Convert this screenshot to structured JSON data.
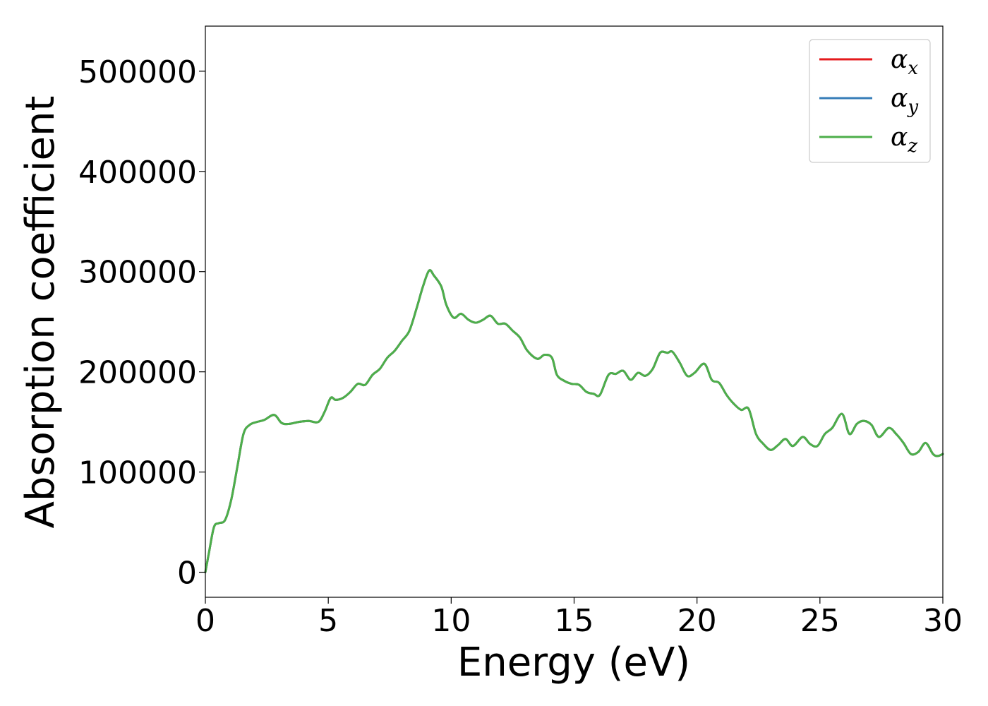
{
  "chart_data": {
    "type": "line",
    "title": "",
    "xlabel": "Energy (eV)",
    "ylabel": "Absorption coefficient",
    "xlim": [
      0,
      30
    ],
    "ylim": [
      -25000,
      545000
    ],
    "x_ticks": [
      0,
      5,
      10,
      15,
      20,
      25,
      30
    ],
    "x_tick_labels": [
      "0",
      "5",
      "10",
      "15",
      "20",
      "25",
      "30"
    ],
    "y_ticks": [
      0,
      100000,
      200000,
      300000,
      400000,
      500000
    ],
    "y_tick_labels": [
      "0",
      "100000",
      "200000",
      "300000",
      "400000",
      "500000"
    ],
    "grid": false,
    "legend_position": "top-right",
    "series": [
      {
        "name": "α_x",
        "name_base": "α",
        "name_sub": "x",
        "color": "#e41a1c",
        "x": [
          0,
          0.15,
          0.35,
          0.55,
          0.8,
          1.05,
          1.3,
          1.55,
          1.8,
          2.1,
          2.4,
          2.8,
          3.1,
          3.4,
          3.8,
          4.2,
          4.6,
          4.85,
          5.1,
          5.3,
          5.6,
          5.9,
          6.2,
          6.5,
          6.8,
          7.1,
          7.4,
          7.7,
          8.0,
          8.3,
          8.6,
          8.85,
          9.1,
          9.3,
          9.6,
          9.8,
          10.1,
          10.4,
          10.7,
          11.0,
          11.3,
          11.6,
          11.9,
          12.2,
          12.5,
          12.8,
          13.1,
          13.5,
          13.8,
          14.1,
          14.3,
          14.6,
          14.9,
          15.2,
          15.5,
          15.8,
          16.05,
          16.4,
          16.7,
          17.0,
          17.3,
          17.6,
          17.9,
          18.2,
          18.5,
          18.8,
          19.0,
          19.3,
          19.6,
          19.9,
          20.3,
          20.6,
          20.9,
          21.2,
          21.5,
          21.8,
          22.1,
          22.4,
          22.7,
          23.0,
          23.3,
          23.6,
          23.9,
          24.3,
          24.6,
          24.9,
          25.2,
          25.5,
          25.9,
          26.2,
          26.5,
          26.8,
          27.1,
          27.4,
          27.8,
          28.1,
          28.4,
          28.7,
          29.0,
          29.3,
          29.6,
          29.8,
          30.0
        ],
        "y": [
          0,
          20000,
          45000,
          49000,
          52000,
          72000,
          105000,
          138000,
          147000,
          150000,
          152000,
          157000,
          149000,
          148000,
          150000,
          151000,
          150000,
          160000,
          174000,
          172000,
          174000,
          180000,
          188000,
          187000,
          197000,
          203000,
          214000,
          221000,
          231000,
          241000,
          264000,
          285000,
          301000,
          296000,
          285000,
          267000,
          254000,
          258000,
          252000,
          249000,
          252000,
          256000,
          248000,
          248000,
          241000,
          234000,
          221000,
          213000,
          217000,
          214000,
          197000,
          191000,
          188000,
          187000,
          180000,
          178000,
          177000,
          197000,
          198000,
          201000,
          192000,
          199000,
          196000,
          203000,
          219000,
          219000,
          220000,
          209000,
          196000,
          199000,
          208000,
          192000,
          189000,
          177000,
          168000,
          162000,
          163000,
          138000,
          128000,
          122000,
          127000,
          133000,
          126000,
          135000,
          128000,
          126000,
          138000,
          144000,
          158000,
          138000,
          148000,
          151000,
          147000,
          135000,
          144000,
          138000,
          129000,
          118000,
          120000,
          129000,
          118000,
          116000,
          118000
        ]
      },
      {
        "name": "α_y",
        "name_base": "α",
        "name_sub": "y",
        "color": "#377eb8",
        "x": [
          0,
          0.15,
          0.35,
          0.55,
          0.8,
          1.05,
          1.3,
          1.55,
          1.8,
          2.1,
          2.4,
          2.8,
          3.1,
          3.4,
          3.8,
          4.2,
          4.6,
          4.85,
          5.1,
          5.3,
          5.6,
          5.9,
          6.2,
          6.5,
          6.8,
          7.1,
          7.4,
          7.7,
          8.0,
          8.3,
          8.6,
          8.85,
          9.1,
          9.3,
          9.6,
          9.8,
          10.1,
          10.4,
          10.7,
          11.0,
          11.3,
          11.6,
          11.9,
          12.2,
          12.5,
          12.8,
          13.1,
          13.5,
          13.8,
          14.1,
          14.3,
          14.6,
          14.9,
          15.2,
          15.5,
          15.8,
          16.05,
          16.4,
          16.7,
          17.0,
          17.3,
          17.6,
          17.9,
          18.2,
          18.5,
          18.8,
          19.0,
          19.3,
          19.6,
          19.9,
          20.3,
          20.6,
          20.9,
          21.2,
          21.5,
          21.8,
          22.1,
          22.4,
          22.7,
          23.0,
          23.3,
          23.6,
          23.9,
          24.3,
          24.6,
          24.9,
          25.2,
          25.5,
          25.9,
          26.2,
          26.5,
          26.8,
          27.1,
          27.4,
          27.8,
          28.1,
          28.4,
          28.7,
          29.0,
          29.3,
          29.6,
          29.8,
          30.0
        ],
        "y": [
          0,
          20000,
          45000,
          49000,
          52000,
          72000,
          105000,
          138000,
          147000,
          150000,
          152000,
          157000,
          149000,
          148000,
          150000,
          151000,
          150000,
          160000,
          174000,
          172000,
          174000,
          180000,
          188000,
          187000,
          197000,
          203000,
          214000,
          221000,
          231000,
          241000,
          264000,
          285000,
          301000,
          296000,
          285000,
          267000,
          254000,
          258000,
          252000,
          249000,
          252000,
          256000,
          248000,
          248000,
          241000,
          234000,
          221000,
          213000,
          217000,
          214000,
          197000,
          191000,
          188000,
          187000,
          180000,
          178000,
          177000,
          197000,
          198000,
          201000,
          192000,
          199000,
          196000,
          203000,
          219000,
          219000,
          220000,
          209000,
          196000,
          199000,
          208000,
          192000,
          189000,
          177000,
          168000,
          162000,
          163000,
          138000,
          128000,
          122000,
          127000,
          133000,
          126000,
          135000,
          128000,
          126000,
          138000,
          144000,
          158000,
          138000,
          148000,
          151000,
          147000,
          135000,
          144000,
          138000,
          129000,
          118000,
          120000,
          129000,
          118000,
          116000,
          118000
        ]
      },
      {
        "name": "α_z",
        "name_base": "α",
        "name_sub": "z",
        "color": "#4daf4a",
        "x": [
          0,
          0.15,
          0.35,
          0.55,
          0.8,
          1.05,
          1.3,
          1.55,
          1.8,
          2.1,
          2.4,
          2.8,
          3.1,
          3.4,
          3.8,
          4.2,
          4.6,
          4.85,
          5.1,
          5.3,
          5.6,
          5.9,
          6.2,
          6.5,
          6.8,
          7.1,
          7.4,
          7.7,
          8.0,
          8.3,
          8.6,
          8.85,
          9.1,
          9.3,
          9.6,
          9.8,
          10.1,
          10.4,
          10.7,
          11.0,
          11.3,
          11.6,
          11.9,
          12.2,
          12.5,
          12.8,
          13.1,
          13.5,
          13.8,
          14.1,
          14.3,
          14.6,
          14.9,
          15.2,
          15.5,
          15.8,
          16.05,
          16.4,
          16.7,
          17.0,
          17.3,
          17.6,
          17.9,
          18.2,
          18.5,
          18.8,
          19.0,
          19.3,
          19.6,
          19.9,
          20.3,
          20.6,
          20.9,
          21.2,
          21.5,
          21.8,
          22.1,
          22.4,
          22.7,
          23.0,
          23.3,
          23.6,
          23.9,
          24.3,
          24.6,
          24.9,
          25.2,
          25.5,
          25.9,
          26.2,
          26.5,
          26.8,
          27.1,
          27.4,
          27.8,
          28.1,
          28.4,
          28.7,
          29.0,
          29.3,
          29.6,
          29.8,
          30.0
        ],
        "y": [
          0,
          20000,
          45000,
          49000,
          52000,
          72000,
          105000,
          138000,
          147000,
          150000,
          152000,
          157000,
          149000,
          148000,
          150000,
          151000,
          150000,
          160000,
          174000,
          172000,
          174000,
          180000,
          188000,
          187000,
          197000,
          203000,
          214000,
          221000,
          231000,
          241000,
          264000,
          285000,
          301000,
          296000,
          285000,
          267000,
          254000,
          258000,
          252000,
          249000,
          252000,
          256000,
          248000,
          248000,
          241000,
          234000,
          221000,
          213000,
          217000,
          214000,
          197000,
          191000,
          188000,
          187000,
          180000,
          178000,
          177000,
          197000,
          198000,
          201000,
          192000,
          199000,
          196000,
          203000,
          219000,
          219000,
          220000,
          209000,
          196000,
          199000,
          208000,
          192000,
          189000,
          177000,
          168000,
          162000,
          163000,
          138000,
          128000,
          122000,
          127000,
          133000,
          126000,
          135000,
          128000,
          126000,
          138000,
          144000,
          158000,
          138000,
          148000,
          151000,
          147000,
          135000,
          144000,
          138000,
          129000,
          118000,
          120000,
          129000,
          118000,
          116000,
          118000
        ]
      }
    ]
  }
}
